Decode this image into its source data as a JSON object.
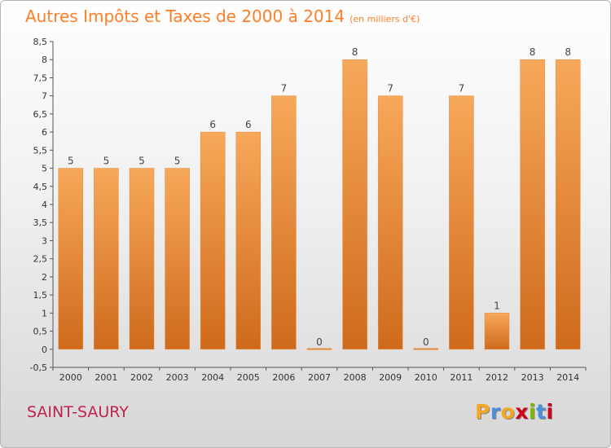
{
  "header": {
    "title": "Autres Impôts et Taxes de 2000 à 2014",
    "unit": "(en milliers d'€)"
  },
  "footer": {
    "city": "SAINT-SAURY",
    "logo_letters": [
      "P",
      "r",
      "o",
      "x",
      "i",
      "t",
      "i"
    ],
    "logo_colors": [
      "#f5a623",
      "#4a90d9",
      "#f5a623",
      "#d0021b",
      "#7ab800",
      "#4a90d9",
      "#d0021b"
    ]
  },
  "colors": {
    "title": "#ff7e26",
    "city": "#c1244d",
    "bar_light": "#f7a85a",
    "bar_dark": "#cf6a1c"
  },
  "chart_data": {
    "type": "bar",
    "title": "Autres Impôts et Taxes de 2000 à 2014",
    "categories": [
      "2000",
      "2001",
      "2002",
      "2003",
      "2004",
      "2005",
      "2006",
      "2007",
      "2008",
      "2009",
      "2010",
      "2011",
      "2012",
      "2013",
      "2014"
    ],
    "values": [
      5,
      5,
      5,
      5,
      6,
      6,
      7,
      0,
      8,
      7,
      0,
      7,
      1,
      8,
      8
    ],
    "ylim": [
      -0.5,
      8.5
    ],
    "yticks": [
      "-0,5",
      "0",
      "0,5",
      "1",
      "1,5",
      "2",
      "2,5",
      "3",
      "3,5",
      "4",
      "4,5",
      "5",
      "5,5",
      "6",
      "6,5",
      "7",
      "7,5",
      "8",
      "8,5"
    ],
    "grid": false,
    "xlabel": "",
    "ylabel": ""
  }
}
